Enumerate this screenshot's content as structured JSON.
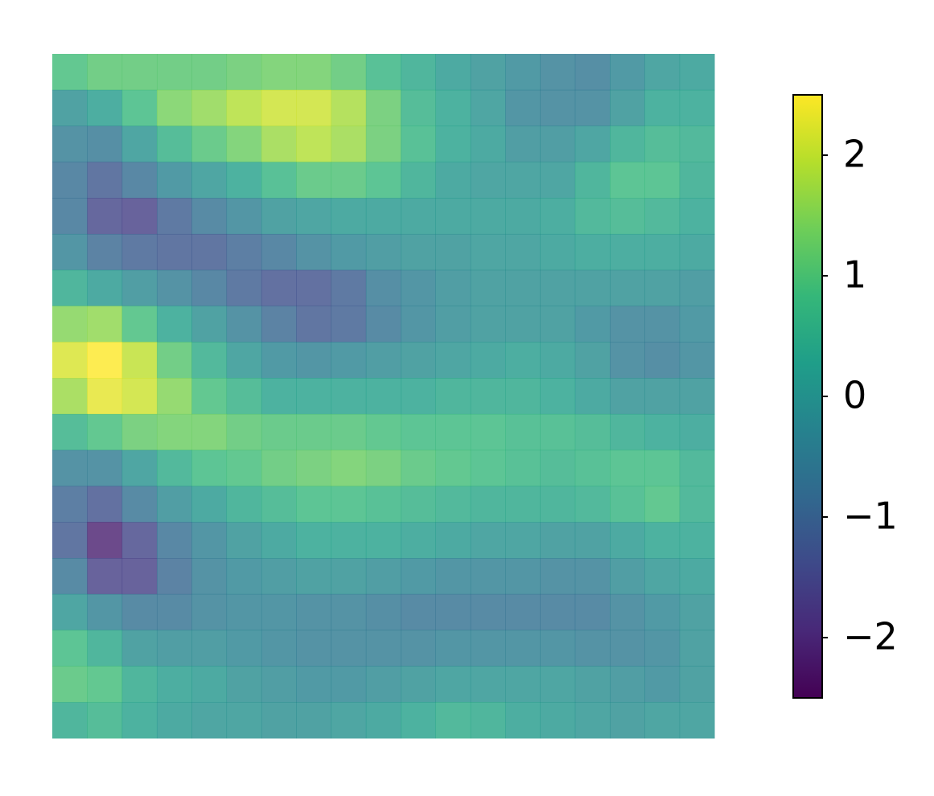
{
  "chart_data": {
    "type": "heatmap",
    "colormap": "viridis",
    "alpha": 0.8,
    "clim": [
      -2.5,
      2.5
    ],
    "cticks": [
      {
        "value": -2,
        "label": "−2"
      },
      {
        "value": -1,
        "label": "−1"
      },
      0,
      1,
      2
    ],
    "values": [
      [
        0.9,
        1.1,
        1.1,
        1.1,
        1.1,
        1.2,
        1.3,
        1.3,
        1.1,
        0.7,
        0.4,
        0.1,
        -0.1,
        -0.3,
        -0.5,
        -0.6,
        -0.3,
        0,
        0.1
      ],
      [
        -0.1,
        0.2,
        0.8,
        1.4,
        1.6,
        1.9,
        2.1,
        2.1,
        1.8,
        1.2,
        0.6,
        0.3,
        0,
        -0.4,
        -0.5,
        -0.5,
        -0.1,
        0.3,
        0.3
      ],
      [
        -0.5,
        -0.6,
        0,
        0.6,
        1,
        1.3,
        1.7,
        1.9,
        1.7,
        1.2,
        0.7,
        0.3,
        0.1,
        -0.2,
        -0.2,
        0,
        0.4,
        0.6,
        0.5
      ],
      [
        -0.8,
        -1.2,
        -0.8,
        -0.3,
        0,
        0.3,
        0.7,
        1,
        1,
        0.8,
        0.4,
        0.1,
        0,
        0,
        0,
        0.4,
        0.8,
        0.8,
        0.4
      ],
      [
        -0.8,
        -1.5,
        -1.6,
        -1.1,
        -0.7,
        -0.4,
        -0.1,
        0,
        0.1,
        0.1,
        0.1,
        0.1,
        0.1,
        0.1,
        0.2,
        0.5,
        0.6,
        0.5,
        0.3
      ],
      [
        -0.4,
        -0.9,
        -1.1,
        -1.2,
        -1.2,
        -1,
        -0.8,
        -0.5,
        -0.3,
        -0.2,
        -0.1,
        -0.1,
        0,
        0,
        0.1,
        0.2,
        0.2,
        0.2,
        0.1
      ],
      [
        0.4,
        0.1,
        -0.2,
        -0.5,
        -0.8,
        -1.1,
        -1.3,
        -1.3,
        -1.1,
        -0.6,
        -0.4,
        -0.2,
        -0.1,
        -0.1,
        -0.1,
        -0.1,
        -0.1,
        -0.1,
        -0.2
      ],
      [
        1.5,
        1.6,
        0.9,
        0.3,
        -0.1,
        -0.5,
        -0.9,
        -1.2,
        -1.1,
        -0.7,
        -0.4,
        -0.2,
        -0.1,
        -0.1,
        -0.1,
        -0.3,
        -0.5,
        -0.5,
        -0.3
      ],
      [
        2.2,
        2.5,
        2,
        1.1,
        0.5,
        0,
        -0.3,
        -0.4,
        -0.3,
        -0.2,
        -0.1,
        0,
        0.1,
        0.2,
        0.1,
        -0.1,
        -0.5,
        -0.6,
        -0.4
      ],
      [
        1.7,
        2.3,
        2.1,
        1.5,
        0.9,
        0.6,
        0.3,
        0.3,
        0.3,
        0.3,
        0.3,
        0.4,
        0.4,
        0.4,
        0.3,
        0.1,
        -0.1,
        -0.1,
        -0.1
      ],
      [
        0.6,
        0.9,
        1.2,
        1.3,
        1.3,
        1.1,
        1,
        1,
        1,
        0.9,
        0.8,
        0.8,
        0.8,
        0.7,
        0.7,
        0.6,
        0.4,
        0.3,
        0.2
      ],
      [
        -0.5,
        -0.5,
        0,
        0.5,
        0.8,
        0.9,
        1.1,
        1.2,
        1.3,
        1.2,
        1,
        0.9,
        0.8,
        0.7,
        0.6,
        0.7,
        0.8,
        0.8,
        0.5
      ],
      [
        -1,
        -1.3,
        -0.7,
        -0.2,
        0.1,
        0.4,
        0.6,
        0.8,
        0.8,
        0.7,
        0.6,
        0.5,
        0.4,
        0.4,
        0.4,
        0.5,
        0.7,
        0.9,
        0.5
      ],
      [
        -1.2,
        -2.1,
        -1.5,
        -0.8,
        -0.4,
        -0.1,
        0.1,
        0.3,
        0.3,
        0.3,
        0.2,
        0.1,
        0,
        0,
        -0.1,
        -0.1,
        0.1,
        0.3,
        0.3
      ],
      [
        -0.7,
        -1.6,
        -1.6,
        -0.9,
        -0.5,
        -0.3,
        -0.2,
        -0.1,
        -0.1,
        -0.2,
        -0.3,
        -0.4,
        -0.4,
        -0.4,
        -0.5,
        -0.5,
        -0.2,
        0,
        0.1
      ],
      [
        0,
        -0.4,
        -0.7,
        -0.7,
        -0.5,
        -0.4,
        -0.4,
        -0.5,
        -0.5,
        -0.6,
        -0.7,
        -0.7,
        -0.7,
        -0.7,
        -0.7,
        -0.7,
        -0.5,
        -0.3,
        -0.1
      ],
      [
        0.8,
        0.4,
        -0.1,
        -0.2,
        -0.2,
        -0.3,
        -0.4,
        -0.5,
        -0.5,
        -0.5,
        -0.5,
        -0.4,
        -0.4,
        -0.4,
        -0.4,
        -0.5,
        -0.5,
        -0.4,
        -0.1
      ],
      [
        1,
        0.9,
        0.4,
        0.2,
        0.1,
        -0.1,
        -0.2,
        -0.3,
        -0.3,
        -0.2,
        -0.1,
        0,
        0,
        0,
        0,
        -0.1,
        -0.2,
        -0.3,
        -0.1
      ],
      [
        0.4,
        0.6,
        0.3,
        0.1,
        0,
        0,
        -0.1,
        -0.1,
        0,
        0.1,
        0.3,
        0.5,
        0.4,
        0.2,
        0.1,
        0,
        -0.1,
        0,
        0
      ]
    ]
  }
}
